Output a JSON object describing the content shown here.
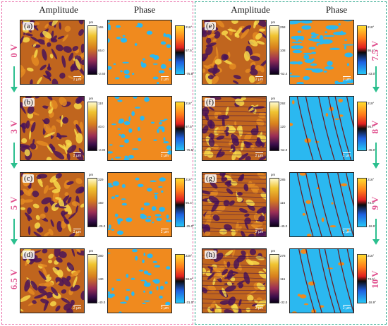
{
  "titles": {
    "amplitude": "Amplitude",
    "phase": "Phase"
  },
  "rows": [
    {
      "left": {
        "letter": "(a)",
        "voltage": "0 V",
        "amp_top": "165",
        "amp_mid": "65.0",
        "amp_bot": "-2.60",
        "phase_top": "216°",
        "phase_mid": "67.5°",
        "phase_bot": "-75.5°"
      },
      "right": {
        "letter": "(e)",
        "voltage": "7.5 V",
        "amp_top": "258",
        "amp_mid": "108",
        "amp_bot": "-52.4",
        "phase_top": "218°",
        "phase_mid": "95.4°",
        "phase_bot": "-43.0°"
      }
    },
    {
      "left": {
        "letter": "(b)",
        "voltage": "3 V",
        "amp_top": "110",
        "amp_mid": "40.0",
        "amp_bot": "-2.90",
        "phase_top": "216°",
        "phase_mid": "67.5°",
        "phase_bot": "-75.5°"
      },
      "right": {
        "letter": "(f)",
        "voltage": "8 V",
        "amp_top": "292",
        "amp_mid": "120",
        "amp_bot": "-52.0",
        "phase_top": "219°",
        "phase_mid": "95.7°",
        "phase_bot": "-45.0°"
      }
    },
    {
      "left": {
        "letter": "(c)",
        "voltage": "5 V",
        "amp_top": "329",
        "amp_mid": "150",
        "amp_bot": "-25.0",
        "phase_top": "216°",
        "phase_mid": "95.4°",
        "phase_bot": "-25.0°"
      },
      "right": {
        "letter": "(g)",
        "voltage": "9 V",
        "amp_top": "285",
        "amp_mid": "116",
        "amp_bot": "-45.0",
        "phase_top": "216°",
        "phase_mid": "73.6°",
        "phase_bot": "-18.9°"
      }
    },
    {
      "left": {
        "letter": "(d)",
        "voltage": "6.5 V",
        "amp_top": "380",
        "amp_mid": "130",
        "amp_bot": "-40.0",
        "phase_top": "229°",
        "phase_mid": "98.9°",
        "phase_bot": "-31.0°"
      },
      "right": {
        "letter": "(h)",
        "voltage": "10 V",
        "amp_top": "278",
        "amp_mid": "116",
        "amp_bot": "-32.0",
        "phase_top": "216°",
        "phase_mid": "73.6°",
        "phase_bot": "-18.9°"
      }
    }
  ],
  "units": {
    "amp": "pm",
    "phase": ""
  },
  "scalebar_label": "2 µm",
  "colors": {
    "left_border": "#e86aa7",
    "right_border": "#2aa58a",
    "voltage_text": "#e0508e",
    "arrow": "#2bbf8e"
  }
}
